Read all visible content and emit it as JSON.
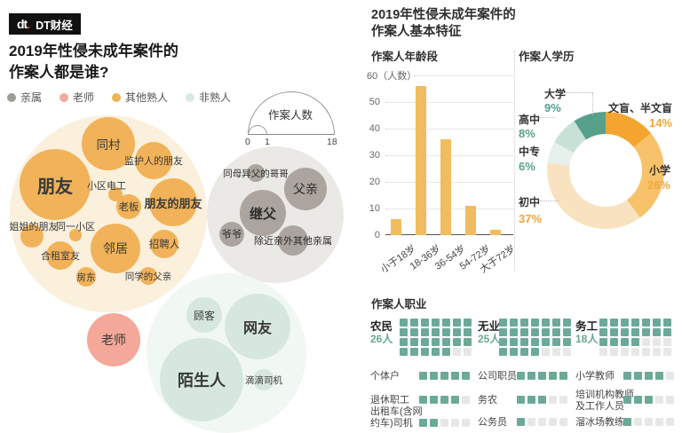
{
  "brand": {
    "mark": "dt",
    "mark_dot": ".",
    "name": "DT财经"
  },
  "left_panel": {
    "title_line1": "2019年性侵未成年案件的",
    "title_line2": "作案人都是谁?",
    "legend": [
      {
        "label": "亲属",
        "color": "#9C9C96"
      },
      {
        "label": "老师",
        "color": "#F1AB9C"
      },
      {
        "label": "其他熟人",
        "color": "#EFB355"
      },
      {
        "label": "非熟人",
        "color": "#D9EBE1"
      }
    ],
    "size_legend": {
      "title": "作案人数",
      "ticks": [
        "0",
        "1",
        "18"
      ]
    }
  },
  "right_panel": {
    "title_line1": "2019年性侵未成年案件的",
    "title_line2": "作案人基本特征",
    "section_age": "作案人年龄段",
    "section_education": "作案人学历",
    "section_occupation": "作案人职业"
  },
  "bubble_labels": {
    "friend": "朋友",
    "same_village": "同村",
    "guardians_friend": "监护人的朋友",
    "electrician": "小区电工",
    "boss": "老板",
    "friends_friend": "朋友的朋友",
    "sisters_friend": "姐姐的朋友",
    "same_neighborhood": "同一小区",
    "neighbor": "邻居",
    "recruiter": "招聘人",
    "roommate": "合租室友",
    "landlord": "房东",
    "classmates_father": "同学的父亲",
    "half_brother": "同母异父的哥哥",
    "father": "父亲",
    "stepfather": "继父",
    "grandfather": "爷爷",
    "other_relatives": "除近亲外其他亲属",
    "teacher": "老师",
    "customer": "顾客",
    "net_friend": "网友",
    "stranger": "陌生人",
    "didi_driver": "滴滴司机"
  },
  "chart_data": [
    {
      "type": "bubble",
      "title": "2019年性侵未成年案件的作案人都是谁?",
      "size_scale": {
        "label": "作案人数",
        "min": 0,
        "mid": 1,
        "max": 18
      },
      "groups": [
        {
          "name": "其他熟人",
          "color": "#F1B259",
          "items": [
            "朋友",
            "同村",
            "监护人的朋友",
            "小区电工",
            "老板",
            "朋友的朋友",
            "姐姐的朋友",
            "同一小区",
            "邻居",
            "招聘人",
            "合租室友",
            "房东",
            "同学的父亲"
          ]
        },
        {
          "name": "亲属",
          "color": "#ACA49E",
          "items": [
            "同母异父的哥哥",
            "父亲",
            "继父",
            "爷爷",
            "除近亲外其他亲属"
          ]
        },
        {
          "name": "老师",
          "color": "#F4A89A",
          "items": [
            "老师"
          ]
        },
        {
          "name": "非熟人",
          "color": "#D6E7DD",
          "items": [
            "顾客",
            "网友",
            "陌生人",
            "滴滴司机"
          ]
        }
      ]
    },
    {
      "type": "bar",
      "title": "作案人年龄段",
      "unit_label": "60（人数）",
      "categories": [
        "小于18岁",
        "18-36岁",
        "36-54岁",
        "54-72岁",
        "大于72岁"
      ],
      "values": [
        6,
        56,
        36,
        11,
        2
      ],
      "ylim": [
        0,
        60
      ],
      "ytick_labels": [
        "50",
        "40",
        "30",
        "20",
        "10",
        "0"
      ],
      "bar_color": "#F1BC60",
      "grid": true
    },
    {
      "type": "pie",
      "title": "作案人学历",
      "slices": [
        {
          "label": "文盲、半文盲",
          "pct": 14,
          "pct_label": "14%",
          "color": "#F3A52F"
        },
        {
          "label": "小学",
          "pct": 26,
          "pct_label": "26%",
          "color": "#F7C269"
        },
        {
          "label": "初中",
          "pct": 37,
          "pct_label": "37%",
          "color": "#F9E2BF"
        },
        {
          "label": "中专",
          "pct": 6,
          "pct_label": "6%",
          "color": "#E8F0EB"
        },
        {
          "label": "高中",
          "pct": 8,
          "pct_label": "8%",
          "color": "#C7E1D6"
        },
        {
          "label": "大学",
          "pct": 9,
          "pct_label": "9%",
          "color": "#57A18C"
        }
      ]
    },
    {
      "type": "pictogram",
      "title": "作案人职业",
      "filled_color": "#6CA998",
      "empty_color": "#E7E7E5",
      "items": [
        {
          "label": "农民",
          "count_label": "26人",
          "filled": 26,
          "total": 28,
          "columns": 7
        },
        {
          "label": "无业",
          "count_label": "25人",
          "filled": 25,
          "total": 28,
          "columns": 7
        },
        {
          "label": "务工",
          "count_label": "18人",
          "filled": 18,
          "total": 28,
          "columns": 7
        },
        {
          "label": "个体户",
          "filled": 5,
          "total": 5,
          "columns": 5
        },
        {
          "label": "公司职员",
          "filled": 5,
          "total": 5,
          "columns": 5
        },
        {
          "label": "小学教师",
          "filled": 4,
          "total": 5,
          "columns": 5
        },
        {
          "label": "退休职工",
          "filled": 4,
          "total": 5,
          "columns": 5
        },
        {
          "label": "务农",
          "filled": 3,
          "total": 5,
          "columns": 5
        },
        {
          "label": "培训机构教师及工作人员",
          "label_lines": [
            "培训机构教师",
            "及工作人员"
          ],
          "filled": 3,
          "total": 5,
          "columns": 5
        },
        {
          "label": "出租车(含网约车)司机",
          "label_lines": [
            "出租车(含网",
            "约车)司机"
          ],
          "filled": 2,
          "total": 5,
          "columns": 5
        },
        {
          "label": "公务员",
          "filled": 1,
          "total": 5,
          "columns": 5
        },
        {
          "label": "溜冰场教练",
          "filled": 1,
          "total": 5,
          "columns": 5
        }
      ]
    }
  ]
}
